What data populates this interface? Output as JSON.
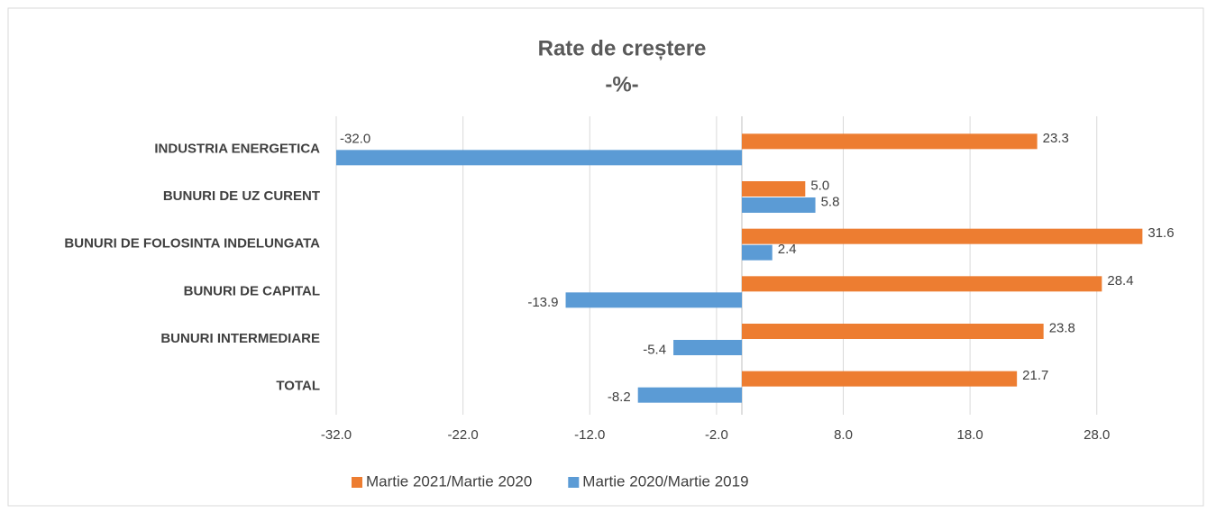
{
  "chart_data": {
    "type": "hbar",
    "title": "Rate de creștere",
    "subtitle": "-%-",
    "categories": [
      "INDUSTRIA ENERGETICA",
      "BUNURI DE UZ CURENT",
      "BUNURI DE FOLOSINTA INDELUNGATA",
      "BUNURI DE CAPITAL",
      "BUNURI INTERMEDIARE",
      "TOTAL"
    ],
    "series": [
      {
        "name": "Martie 2021/Martie 2020",
        "color": "#ed7d31",
        "values": [
          23.3,
          5.0,
          31.6,
          28.4,
          23.8,
          21.7
        ],
        "value_labels": [
          "23.3",
          "5.0",
          "31.6",
          "28.4",
          "23.8",
          "21.7"
        ]
      },
      {
        "name": "Martie 2020/Martie 2019",
        "color": "#5b9bd5",
        "values": [
          -32.0,
          5.8,
          2.4,
          -13.9,
          -5.4,
          -8.2
        ],
        "value_labels": [
          "-32.0",
          "5.8",
          "2.4",
          "-13.9",
          "-5.4",
          "-8.2"
        ]
      }
    ],
    "xlim": [
      -32,
      32
    ],
    "xticks": [
      {
        "value": -32,
        "label": "-32.0"
      },
      {
        "value": -22,
        "label": "-22.0"
      },
      {
        "value": -12,
        "label": "-12.0"
      },
      {
        "value": -2,
        "label": "-2.0"
      },
      {
        "value": 8,
        "label": "8.0"
      },
      {
        "value": 18,
        "label": "18.0"
      },
      {
        "value": 28,
        "label": "28.0"
      }
    ],
    "grid": true,
    "legend": "bottom"
  }
}
